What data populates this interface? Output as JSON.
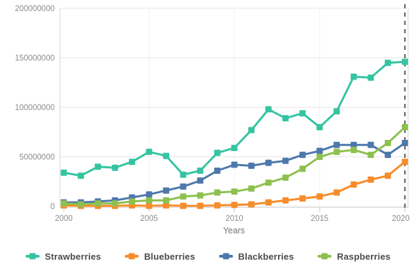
{
  "chart_data": {
    "type": "line",
    "title": "",
    "xlabel": "Years",
    "ylabel": "",
    "x": [
      2000,
      2001,
      2002,
      2003,
      2004,
      2005,
      2006,
      2007,
      2008,
      2009,
      2010,
      2011,
      2012,
      2013,
      2014,
      2015,
      2016,
      2017,
      2018,
      2019,
      2020
    ],
    "x_ticks": [
      2000,
      2005,
      2010,
      2015,
      2020
    ],
    "x_tick_labels": [
      "2000",
      "2005",
      "2010",
      "2015",
      "2020"
    ],
    "y_ticks": [
      0,
      50000000,
      100000000,
      150000000,
      200000000
    ],
    "y_tick_labels": [
      "0",
      "50000000",
      "100000000",
      "150000000",
      "200000000"
    ],
    "xlim": [
      2000,
      2020
    ],
    "ylim": [
      0,
      200000000
    ],
    "grid": true,
    "legend_position": "bottom",
    "annotation": {
      "type": "vertical-dashed-line",
      "x": 2020
    },
    "series": [
      {
        "name": "Strawberries",
        "color": "#35c4a1",
        "values": [
          34000000,
          31000000,
          40000000,
          39000000,
          45000000,
          55000000,
          51000000,
          32000000,
          36000000,
          54000000,
          59000000,
          77000000,
          98000000,
          89000000,
          94000000,
          80000000,
          96000000,
          131000000,
          130000000,
          145000000,
          146000000
        ]
      },
      {
        "name": "Blueberries",
        "color": "#f78c2a",
        "values": [
          1000000,
          500000,
          500000,
          500000,
          1000000,
          500000,
          1000000,
          500000,
          500000,
          1000000,
          1500000,
          2000000,
          4000000,
          6000000,
          8000000,
          10000000,
          14000000,
          22000000,
          27000000,
          31000000,
          45000000
        ]
      },
      {
        "name": "Blackberries",
        "color": "#4e78ab",
        "values": [
          4000000,
          4000000,
          5000000,
          6000000,
          9000000,
          12000000,
          16000000,
          20000000,
          26000000,
          36000000,
          42000000,
          41000000,
          44000000,
          46000000,
          52000000,
          56000000,
          62000000,
          62000000,
          62000000,
          52000000,
          64000000
        ]
      },
      {
        "name": "Raspberries",
        "color": "#8ec04f",
        "values": [
          3000000,
          2000000,
          3000000,
          3000000,
          5000000,
          6000000,
          6000000,
          10000000,
          11000000,
          14000000,
          15000000,
          18000000,
          24000000,
          29000000,
          38000000,
          50000000,
          55000000,
          57000000,
          52000000,
          64000000,
          80000000
        ]
      }
    ]
  },
  "colors": {
    "grid_h": "#e6e6e6",
    "grid_v": "#f0f0f0",
    "border": "#d8d8d8",
    "tick": "#c4c4c4",
    "axis_text": "#8c8c8c",
    "axis_title_text": "#757575",
    "legend_text": "#4a4a4a",
    "dashed_line": "#686868",
    "background": "#ffffff"
  }
}
